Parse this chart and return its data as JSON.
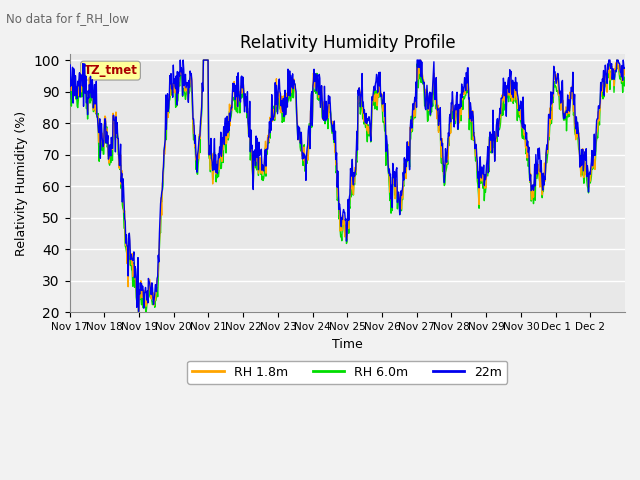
{
  "title": "Relativity Humidity Profile",
  "subtitle": "No data for f_RH_low",
  "xlabel": "Time",
  "ylabel": "Relativity Humidity (%)",
  "ylim": [
    20,
    102
  ],
  "yticks": [
    20,
    30,
    40,
    50,
    60,
    70,
    80,
    90,
    100
  ],
  "legend_labels": [
    "RH 1.8m",
    "RH 6.0m",
    "22m"
  ],
  "colors": {
    "orange": "#FFA500",
    "green": "#00DD00",
    "blue": "#0000EE"
  },
  "annotation_label": "TZ_tmet",
  "annotation_color": "#AA0000",
  "annotation_bg": "#FFFF99",
  "bg_color": "#E8E8E8",
  "fig_bg": "#F2F2F2",
  "x_ticklabels": [
    "Nov 17",
    "Nov 18",
    "Nov 19",
    "Nov 20",
    "Nov 21",
    "Nov 22",
    "Nov 23",
    "Nov 24",
    "Nov 25",
    "Nov 26",
    "Nov 27",
    "Nov 28",
    "Nov 29",
    "Nov 30",
    "Dec 1",
    "Dec 2"
  ],
  "n_points": 960
}
